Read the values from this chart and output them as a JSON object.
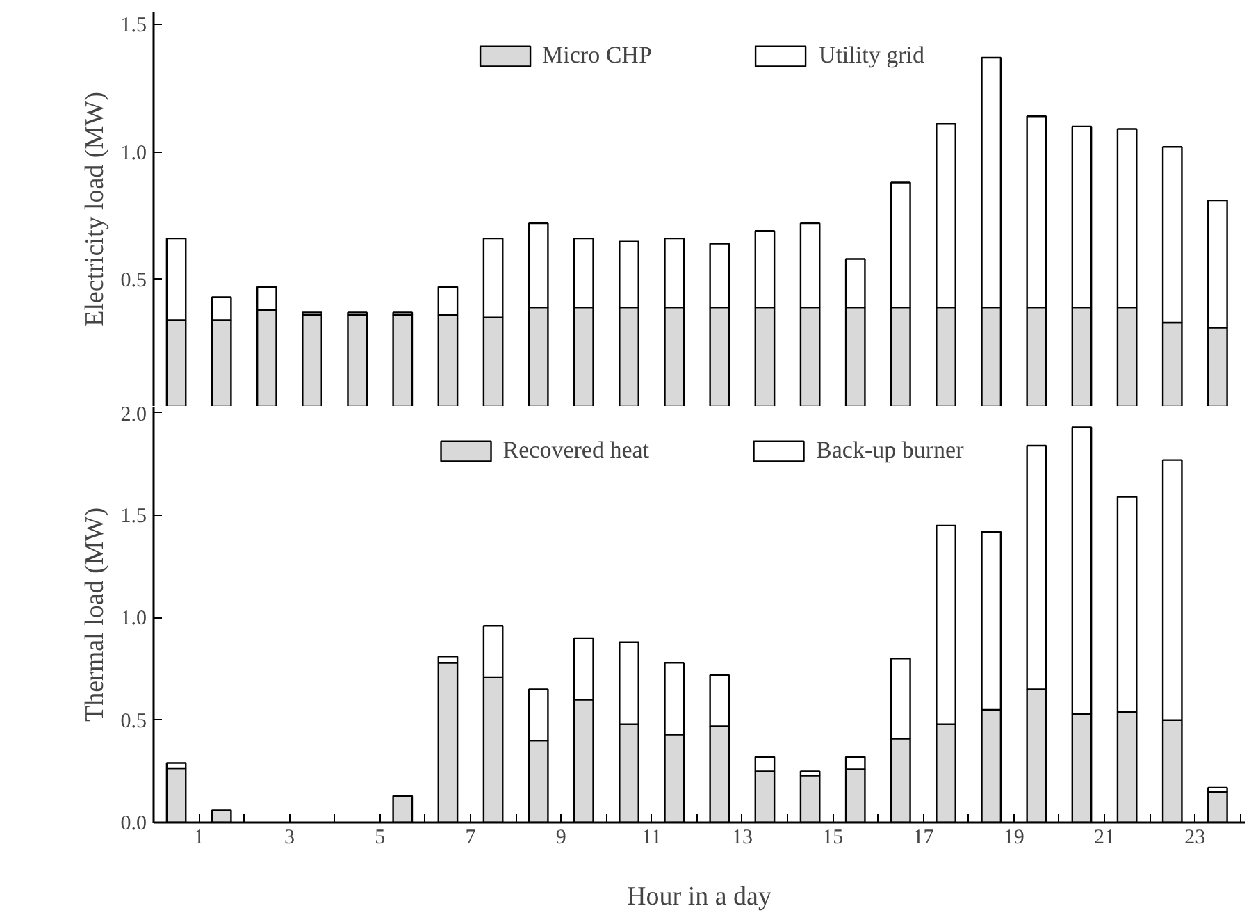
{
  "chart_data": [
    {
      "type": "bar",
      "stacked": true,
      "ylabel": "Electricity load (MW)",
      "legend": "top",
      "tick_labels": "y",
      "categories": [
        null,
        null,
        null,
        null,
        null,
        null,
        null,
        null,
        null,
        null,
        null,
        null,
        null,
        null,
        null,
        null,
        null,
        null,
        null,
        null,
        null,
        null,
        null,
        null
      ],
      "ylim": [
        0,
        1.55
      ],
      "yticks": [
        {
          "value": 0.5,
          "label": "0.5"
        },
        {
          "value": 1.0,
          "label": "1.0"
        },
        {
          "value": 1.5,
          "label": "1.5"
        }
      ],
      "series": [
        {
          "name": "Micro CHP",
          "color": "#d9d9d9",
          "values": [
            0.34,
            0.34,
            0.38,
            0.36,
            0.36,
            0.36,
            0.36,
            0.35,
            0.39,
            0.39,
            0.39,
            0.39,
            0.39,
            0.39,
            0.39,
            0.39,
            0.39,
            0.39,
            0.39,
            0.39,
            0.39,
            0.39,
            0.33,
            0.31
          ]
        },
        {
          "name": "Utility grid",
          "color": "#ffffff",
          "values": [
            0.32,
            0.09,
            0.09,
            0.01,
            0.01,
            0.01,
            0.11,
            0.31,
            0.33,
            0.27,
            0.26,
            0.27,
            0.25,
            0.3,
            0.33,
            0.19,
            0.49,
            0.72,
            0.98,
            0.75,
            0.71,
            0.7,
            0.69,
            0.5
          ]
        }
      ]
    },
    {
      "type": "bar",
      "stacked": true,
      "ylabel": "Thermal load (MW)",
      "xlabel": "Hour in a day",
      "legend": "top",
      "x": [
        0.5,
        1.5,
        2.5,
        3.5,
        4.5,
        5.5,
        6.5,
        7.5,
        8.5,
        9.5,
        10.5,
        11.5,
        12.5,
        13.5,
        14.5,
        15.5,
        16.5,
        17.5,
        18.5,
        19.5,
        20.5,
        21.5,
        22.5,
        23.5
      ],
      "xlim": [
        0,
        24.1
      ],
      "xticks": [
        {
          "value": 0,
          "label": null
        },
        1,
        {
          "value": 2,
          "label": null
        },
        3,
        {
          "value": 4,
          "label": null
        },
        5,
        {
          "value": 6,
          "label": null
        },
        7,
        {
          "value": 8,
          "label": null
        },
        9,
        {
          "value": 10,
          "label": null
        },
        11,
        {
          "value": 12,
          "label": null
        },
        13,
        {
          "value": 14,
          "label": null
        },
        15,
        {
          "value": 16,
          "label": null
        },
        17,
        {
          "value": 18,
          "label": null
        },
        19,
        {
          "value": 20,
          "label": null
        },
        21,
        {
          "value": 22,
          "label": null
        },
        23,
        {
          "value": 24,
          "label": null
        }
      ],
      "ylim": [
        0,
        2.03
      ],
      "yticks": [
        {
          "value": 0,
          "label": "0.0"
        },
        {
          "value": 0.5,
          "label": "0.5"
        },
        {
          "value": 1.0,
          "label": "1.0"
        },
        {
          "value": 1.5,
          "label": "1.5"
        },
        {
          "value": 2.0,
          "label": "2.0"
        }
      ],
      "series": [
        {
          "name": "Recovered heat",
          "color": "#d9d9d9",
          "values": [
            0.265,
            0.06,
            0,
            0,
            0,
            0.13,
            0.78,
            0.71,
            0.4,
            0.6,
            0.48,
            0.43,
            0.47,
            0.25,
            0.23,
            0.26,
            0.41,
            0.48,
            0.55,
            0.65,
            0.53,
            0.54,
            0.5,
            0.15
          ]
        },
        {
          "name": "Back-up burner",
          "color": "#ffffff",
          "values": [
            0.025,
            0,
            0,
            0,
            0,
            0,
            0.03,
            0.25,
            0.25,
            0.3,
            0.4,
            0.35,
            0.25,
            0.07,
            0.02,
            0.06,
            0.39,
            0.97,
            0.87,
            1.19,
            1.4,
            1.05,
            1.27,
            0.02
          ]
        }
      ]
    }
  ]
}
